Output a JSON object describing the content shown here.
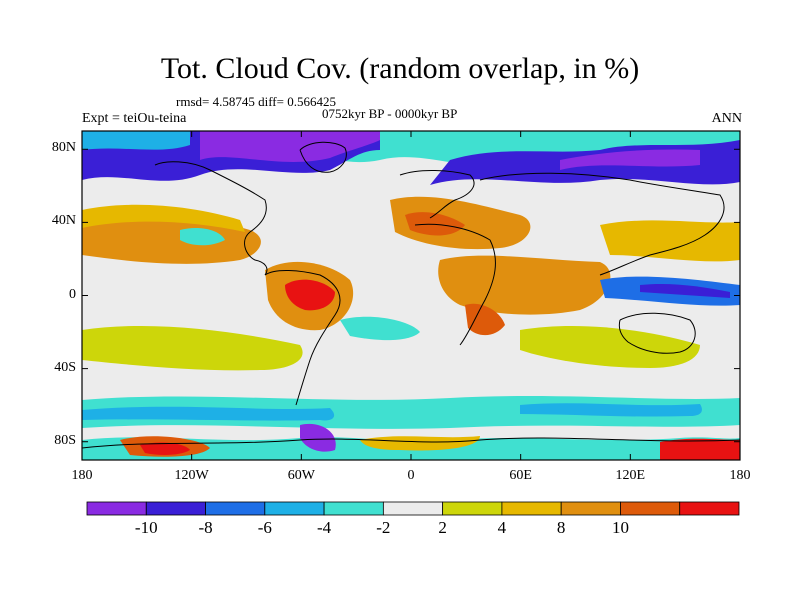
{
  "figure": {
    "title": "Tot. Cloud Cov. (random overlap, in %)",
    "stats": "rmsd= 4.58745 diff= 0.566425",
    "period": "0752kyr BP - 0000kyr BP",
    "experiment": "Expt = teiOu-teina",
    "season": "ANN"
  },
  "map": {
    "projection": "cylindrical equidistant",
    "lon_range": [
      -180,
      180
    ],
    "lat_range": [
      -90,
      90
    ],
    "lat_ticks": [
      {
        "value": 80,
        "label": "80N"
      },
      {
        "value": 40,
        "label": "40N"
      },
      {
        "value": 0,
        "label": "0"
      },
      {
        "value": -40,
        "label": "40S"
      },
      {
        "value": -80,
        "label": "80S"
      }
    ],
    "lon_ticks": [
      {
        "value": -180,
        "label": "180"
      },
      {
        "value": -120,
        "label": "120W"
      },
      {
        "value": -60,
        "label": "60W"
      },
      {
        "value": 0,
        "label": "0"
      },
      {
        "value": 60,
        "label": "60E"
      },
      {
        "value": 120,
        "label": "120E"
      },
      {
        "value": 180,
        "label": "180"
      }
    ]
  },
  "colorbar": {
    "colors": [
      "#8a2be2",
      "#3a1fd6",
      "#1e6ee6",
      "#1eb0e6",
      "#40e0d0",
      "#ececec",
      "#cdd60a",
      "#e6b800",
      "#e08f10",
      "#dd5a0a",
      "#e81212"
    ],
    "labels": [
      {
        "boundary": 1,
        "text": "-10"
      },
      {
        "boundary": 2,
        "text": "-8"
      },
      {
        "boundary": 3,
        "text": "-6"
      },
      {
        "boundary": 4,
        "text": "-4"
      },
      {
        "boundary": 5,
        "text": "-2"
      },
      {
        "boundary": 6,
        "text": "2"
      },
      {
        "boundary": 7,
        "text": "4"
      },
      {
        "boundary": 8,
        "text": "8"
      },
      {
        "boundary": 9,
        "text": "10"
      }
    ]
  }
}
